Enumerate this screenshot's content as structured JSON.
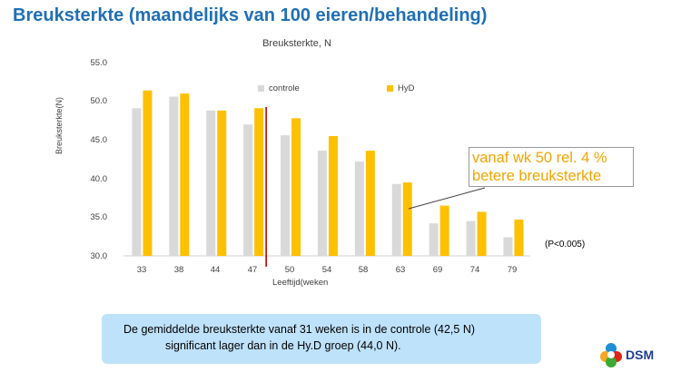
{
  "slide_title": "Breuksterkte (maandelijks  van 100 eieren/behandeling)",
  "callout": {
    "line1": "vanaf wk 50 rel. 4 %",
    "line2": "betere breuksterkte"
  },
  "p_note": "(P<0.005)",
  "info_box": {
    "line1": "De gemiddelde breuksterkte vanaf 31 weken is in de controle (42,5 N)",
    "line2": "significant lager dan in de Hy.D groep (44,0 N)."
  },
  "logo": {
    "text": "DSM"
  },
  "colors": {
    "title": "#1f6fb5",
    "controle": "#d9d9d9",
    "hyd": "#ffc000",
    "marker_line": "#c00000",
    "info_box": "#bfe2fb"
  },
  "chart_data": {
    "type": "bar",
    "title": "Breuksterkte, N",
    "xlabel": "Leeftijd(weken",
    "ylabel": "Breuksterkte(N)",
    "ylim": [
      30,
      55
    ],
    "yticks": [
      "55.0",
      "50.0",
      "45.0",
      "40.0",
      "35.0",
      "30.0"
    ],
    "categories": [
      "33",
      "38",
      "44",
      "47",
      "50",
      "54",
      "58",
      "63",
      "69",
      "74",
      "79"
    ],
    "series": [
      {
        "name": "controle",
        "color": "#d9d9d9",
        "values": [
          49.1,
          50.6,
          48.8,
          47.0,
          45.6,
          43.6,
          42.2,
          39.3,
          34.2,
          34.5,
          32.4
        ]
      },
      {
        "name": "HyD",
        "color": "#ffc000",
        "values": [
          51.4,
          51.0,
          48.8,
          49.1,
          47.8,
          45.5,
          43.6,
          39.5,
          36.5,
          35.7,
          34.7
        ]
      }
    ],
    "legend_position": "top-center",
    "grid": false,
    "vertical_marker_after_category": "47"
  }
}
